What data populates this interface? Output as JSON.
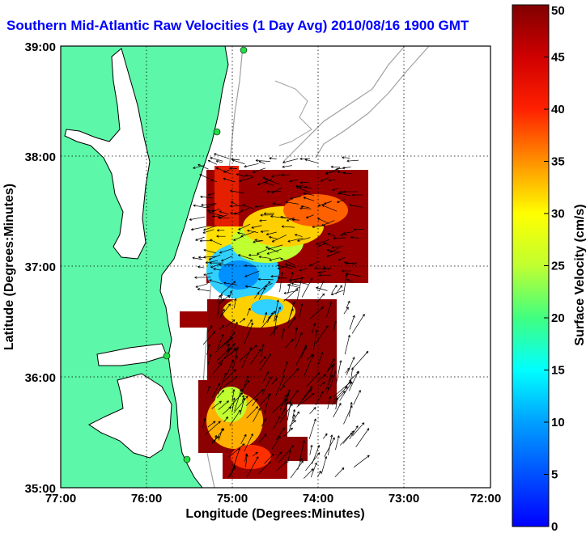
{
  "title": "Southern Mid-Atlantic Raw Velocities (1 Day Avg) 2010/08/16 1900 GMT",
  "chart_data": {
    "type": "heatmap",
    "title": "Southern Mid-Atlantic Raw Velocities (1 Day Avg) 2010/08/16 1900 GMT",
    "xlabel": "Longitude (Degrees:Minutes)",
    "ylabel": "Latitude (Degrees:Minutes)",
    "x_ticks": [
      "77:00",
      "76:00",
      "75:00",
      "74:00",
      "73:00",
      "72:00"
    ],
    "y_ticks": [
      "39:00",
      "38:00",
      "37:00",
      "36:00",
      "35:00"
    ],
    "xlim": [
      -77,
      -72
    ],
    "ylim": [
      35,
      39
    ],
    "grid": true,
    "colorbar": {
      "label": "Surface Velocity (cm/s)",
      "range": [
        0,
        50
      ],
      "ticks": [
        "0",
        "5",
        "10",
        "15",
        "20",
        "25",
        "30",
        "35",
        "40",
        "45",
        "50"
      ]
    },
    "colors": {
      "land": "#5cf7a8",
      "coast": "#000000",
      "bathymetry": "#a0a0a0",
      "grid": "#000000"
    }
  }
}
